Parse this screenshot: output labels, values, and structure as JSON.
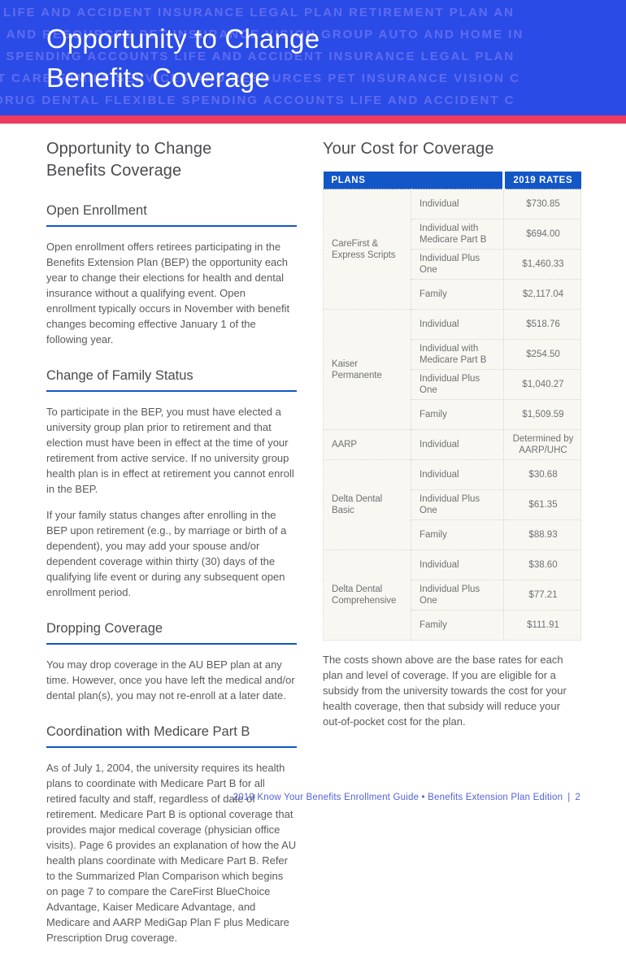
{
  "header": {
    "watermark_lines": [
      "S LIFE AND ACCIDENT INSURANCE LEGAL PLAN RETIREMENT PLAN AN",
      "S AND RESOURCES PET INSURANCE VISION GROUP AUTO AND HOME IN",
      "LE SPENDING ACCOUNTS LIFE AND ACCIDENT INSURANCE LEGAL PLAN",
      "NT CARE FAMILY SERVICES AND RESOURCES PET INSURANCE VISION C",
      "N DRUG DENTAL FLEXIBLE SPENDING ACCOUNTS LIFE AND ACCIDENT C"
    ],
    "title_lines": [
      "Opportunity to Change",
      "Benefits Coverage"
    ]
  },
  "left_column": {
    "heading_lines": [
      "Opportunity to Change",
      "Benefits Coverage"
    ],
    "sections": [
      {
        "heading": "Open Enrollment",
        "paragraphs": [
          "Open enrollment offers retirees participating in the Benefits Extension Plan (BEP) the opportunity each year to change their elections for health and dental insurance without a qualifying event. Open enrollment typically occurs in November with benefit changes becoming effective January 1 of the following year."
        ]
      },
      {
        "heading": "Change of Family Status",
        "paragraphs": [
          "To participate in the BEP, you must have elected a university group plan prior to retirement and that election must have been in effect at the time of your retirement from active service. If no university group health plan is in effect at retirement you cannot enroll in the BEP.",
          "If your family status changes after enrolling in the BEP upon retirement (e.g., by marriage or birth of a dependent), you may add your spouse and/or dependent coverage within thirty (30) days of the qualifying life event or during any subsequent open enrollment period."
        ]
      },
      {
        "heading": "Dropping Coverage",
        "paragraphs": [
          "You may drop coverage in the AU BEP plan at any time. However, once you have left the medical and/or dental plan(s), you may not re-enroll at a later date."
        ]
      },
      {
        "heading": "Coordination with Medicare Part B",
        "paragraphs": [
          "As of July 1, 2004, the university requires its health plans to coordinate with Medicare Part B for all retired faculty and staff, regardless of date of retirement. Medicare Part B is optional coverage that provides major medical coverage (physician office visits). Page 6 provides an explanation of how the AU health plans coordinate with Medicare Part B. Refer to the Summarized Plan Comparison which begins on page 7 to compare the CareFirst BlueChoice Advantage, Kaiser Medicare Advantage, and Medicare and AARP MediGap Plan F plus Medicare Prescription Drug coverage."
        ]
      }
    ]
  },
  "right_column": {
    "heading": "Your Cost for Coverage",
    "cost_table": {
      "headers": [
        "PLANS",
        "2019 RATES"
      ],
      "groups": [
        {
          "plan": "CareFirst & Express Scripts",
          "rows": [
            {
              "level": "Individual",
              "rate": "$730.85"
            },
            {
              "level": "Individual with Medicare Part B",
              "rate": "$694.00"
            },
            {
              "level": "Individual Plus One",
              "rate": "$1,460.33"
            },
            {
              "level": "Family",
              "rate": "$2,117.04"
            }
          ]
        },
        {
          "plan": "Kaiser Permanente",
          "rows": [
            {
              "level": "Individual",
              "rate": "$518.76"
            },
            {
              "level": "Individual with Medicare Part B",
              "rate": "$254.50"
            },
            {
              "level": "Individual Plus One",
              "rate": "$1,040.27"
            },
            {
              "level": "Family",
              "rate": "$1,509.59"
            }
          ]
        },
        {
          "plan": "AARP",
          "rows": [
            {
              "level": "Individual",
              "rate": "Determined by AARP/UHC"
            }
          ]
        },
        {
          "plan": "Delta Dental Basic",
          "rows": [
            {
              "level": "Individual",
              "rate": "$30.68"
            },
            {
              "level": "Individual Plus One",
              "rate": "$61.35"
            },
            {
              "level": "Family",
              "rate": "$88.93"
            }
          ]
        },
        {
          "plan": "Delta Dental Comprehensive",
          "rows": [
            {
              "level": "Individual",
              "rate": "$38.60"
            },
            {
              "level": "Individual Plus One",
              "rate": "$77.21"
            },
            {
              "level": "Family",
              "rate": "$111.91"
            }
          ]
        }
      ]
    },
    "note": "The costs shown above are the base rates for each plan and level of coverage. If you are eligible for a subsidy from the university towards the cost for your health coverage, then that subsidy will reduce your out-of-pocket cost for the plan."
  },
  "footer": {
    "text": "2019 Know Your Benefits Enrollment Guide • Benefits Extension Plan Edition",
    "separator": "|",
    "page_number": "2"
  },
  "colors": {
    "banner_blue": "#2b4be6",
    "watermark_blue": "#5e6cf0",
    "accent_pink": "#ee3a61",
    "table_header_blue": "#1256c8",
    "rule_blue": "#1256c8",
    "heading_text": "#4a4b4d",
    "body_text": "#595a5c",
    "table_cell_bg": "#f8f7f2",
    "footer_blue": "#5263d8"
  }
}
